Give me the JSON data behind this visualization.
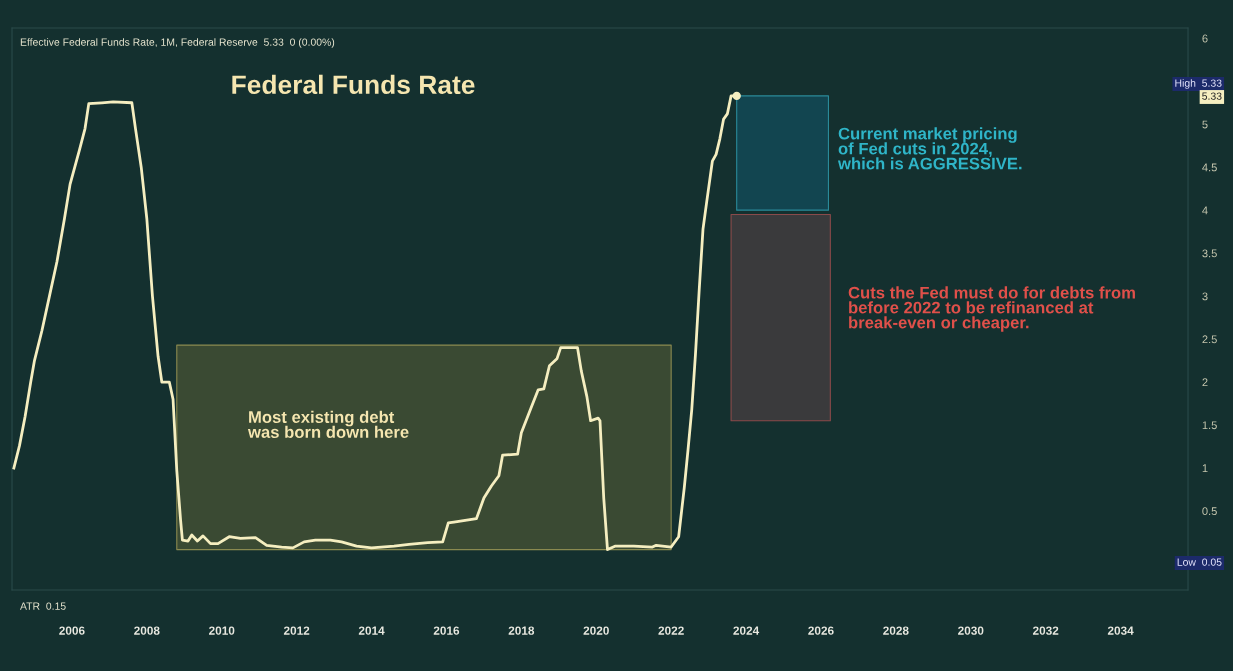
{
  "chart_data": {
    "type": "line",
    "title": "Federal Funds Rate",
    "subtitle": "Effective Federal Funds Rate, 1M, Federal Reserve  5.33  0 (0.00%)",
    "x": [
      2004.45,
      2004.6,
      2004.75,
      2004.9,
      2005.0,
      2005.2,
      2005.4,
      2005.6,
      2005.8,
      2005.95,
      2006.2,
      2006.35,
      2006.45,
      2006.8,
      2007.1,
      2007.6,
      2007.7,
      2007.85,
      2008.0,
      2008.15,
      2008.3,
      2008.4,
      2008.6,
      2008.7,
      2008.8,
      2008.9,
      2008.95,
      2009.1,
      2009.2,
      2009.35,
      2009.5,
      2009.7,
      2009.9,
      2010.2,
      2010.5,
      2010.9,
      2011.2,
      2011.6,
      2011.9,
      2012.2,
      2012.5,
      2012.9,
      2013.2,
      2013.6,
      2014.0,
      2014.6,
      2015.0,
      2015.5,
      2015.9,
      2016.05,
      2016.2,
      2016.8,
      2017.0,
      2017.2,
      2017.4,
      2017.5,
      2017.9,
      2018.0,
      2018.25,
      2018.45,
      2018.6,
      2018.75,
      2018.95,
      2019.05,
      2019.5,
      2019.6,
      2019.75,
      2019.85,
      2020.05,
      2020.1,
      2020.2,
      2020.3,
      2020.5,
      2021.0,
      2021.5,
      2021.6,
      2022.0,
      2022.2,
      2022.35,
      2022.45,
      2022.55,
      2022.65,
      2022.75,
      2022.85,
      2022.95,
      2023.1,
      2023.2,
      2023.3,
      2023.4,
      2023.5,
      2023.6,
      2023.75
    ],
    "series": [
      {
        "type": "area",
        "color": "#3a4a33",
        "x": [
          2008.8,
          2022.0
        ],
        "values": [
          null,
          null
        ],
        "lower": [
          0.05,
          0.05
        ],
        "upper": [
          2.43,
          2.43
        ]
      },
      {
        "type": "area",
        "color": "#124550",
        "x": [
          2023.75,
          2026.2
        ],
        "values": [
          null,
          null
        ],
        "lower": [
          4.0,
          4.0
        ],
        "upper": [
          5.33,
          5.33
        ]
      },
      {
        "type": "area",
        "color": "#3a3a3c",
        "x": [
          2023.6,
          2026.25
        ],
        "values": [
          null,
          null
        ],
        "lower": [
          1.55,
          1.55
        ],
        "upper": [
          3.95,
          3.95
        ]
      },
      {
        "color": "#f5eec0",
        "values": [
          1.0,
          1.26,
          1.6,
          2.0,
          2.25,
          2.6,
          3.0,
          3.4,
          3.9,
          4.3,
          4.7,
          4.95,
          5.24,
          5.25,
          5.26,
          5.25,
          4.94,
          4.5,
          3.9,
          3.0,
          2.3,
          2.0,
          2.0,
          1.8,
          0.97,
          0.4,
          0.16,
          0.15,
          0.22,
          0.15,
          0.21,
          0.12,
          0.12,
          0.2,
          0.18,
          0.19,
          0.1,
          0.08,
          0.07,
          0.14,
          0.16,
          0.16,
          0.14,
          0.09,
          0.07,
          0.09,
          0.11,
          0.13,
          0.14,
          0.36,
          0.37,
          0.41,
          0.65,
          0.79,
          0.91,
          1.15,
          1.16,
          1.41,
          1.69,
          1.91,
          1.92,
          2.19,
          2.27,
          2.4,
          2.4,
          2.13,
          1.83,
          1.55,
          1.58,
          1.55,
          0.65,
          0.05,
          0.09,
          0.09,
          0.08,
          0.1,
          0.08,
          0.2,
          0.77,
          1.21,
          1.68,
          2.33,
          3.08,
          3.78,
          4.1,
          4.57,
          4.65,
          4.83,
          5.06,
          5.12,
          5.33,
          5.33
        ]
      }
    ],
    "xlim": [
      2004.4,
      2035.8
    ],
    "xticks": [
      2006,
      2008,
      2010,
      2012,
      2014,
      2016,
      2018,
      2020,
      2022,
      2024,
      2026,
      2028,
      2030,
      2032,
      2034
    ],
    "ylim": [
      -0.42,
      6.12
    ],
    "yticks": [
      0.5,
      1,
      1.5,
      2,
      2.5,
      3,
      3.5,
      4,
      4.5,
      5,
      6
    ],
    "grid": false,
    "legend": false,
    "marker": "none",
    "line_style": "solid",
    "annotations": [
      "Most existing debt\nwas born down here",
      "Current market pricing\nof Fed cuts in 2024,\nwhich is AGGRESSIVE.",
      "Cuts the Fed must do for debts from\nbefore 2022 to be refinanced at\nbreak-even or cheaper.",
      "High  5.33",
      "5.33",
      "Low  0.05",
      "ATR  0.15"
    ]
  }
}
